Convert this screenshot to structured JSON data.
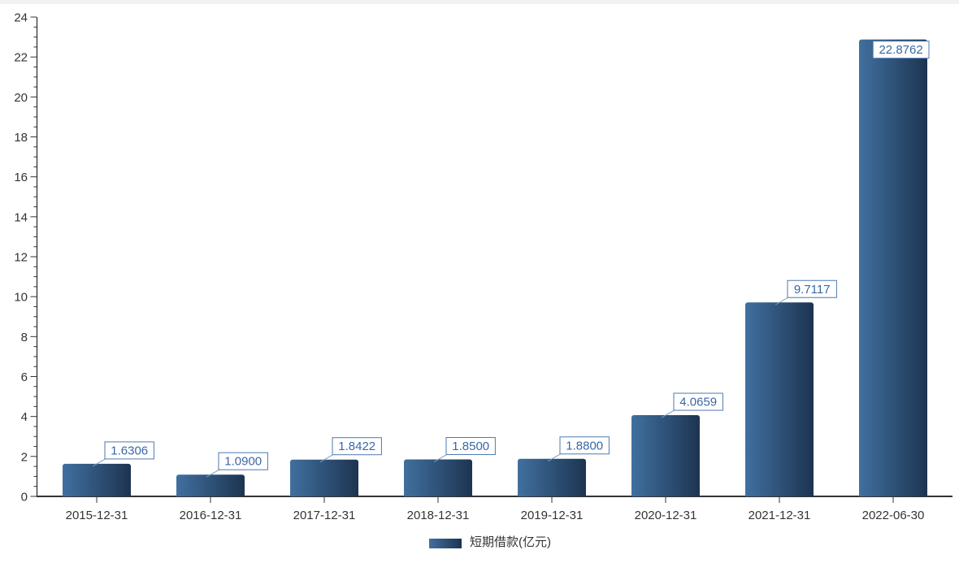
{
  "chart_data": {
    "type": "bar",
    "title": "",
    "categories": [
      "2015-12-31",
      "2016-12-31",
      "2017-12-31",
      "2018-12-31",
      "2019-12-31",
      "2020-12-31",
      "2021-12-31",
      "2022-06-30"
    ],
    "values": [
      1.6306,
      1.09,
      1.8422,
      1.85,
      1.88,
      4.0659,
      9.7117,
      22.8762
    ],
    "value_labels": [
      "1.6306",
      "1.0900",
      "1.8422",
      "1.8500",
      "1.8800",
      "4.0659",
      "9.7117",
      "22.8762"
    ],
    "series": [
      {
        "name": "短期借款(亿元)",
        "values": [
          1.6306,
          1.09,
          1.8422,
          1.85,
          1.88,
          4.0659,
          9.7117,
          22.8762
        ]
      }
    ],
    "xlabel": "",
    "ylabel": "",
    "ylim": [
      0,
      24
    ],
    "y_ticks": [
      0,
      2,
      4,
      6,
      8,
      10,
      12,
      14,
      16,
      18,
      20,
      22,
      24
    ],
    "minor_tick_step": 0.5,
    "grid": false,
    "legend_position": "bottom",
    "colors": {
      "bar_gradient_start": "#40709f",
      "bar_gradient_end": "#1d3451",
      "axis": "#333333",
      "tick_label": "#333333",
      "value_label_text": "#3a67a7",
      "value_label_border": "#4d7aae",
      "value_label_bg": "#ffffff",
      "leader_line": "#7b9cc4"
    }
  },
  "legend": {
    "label": "短期借款(亿元)"
  }
}
